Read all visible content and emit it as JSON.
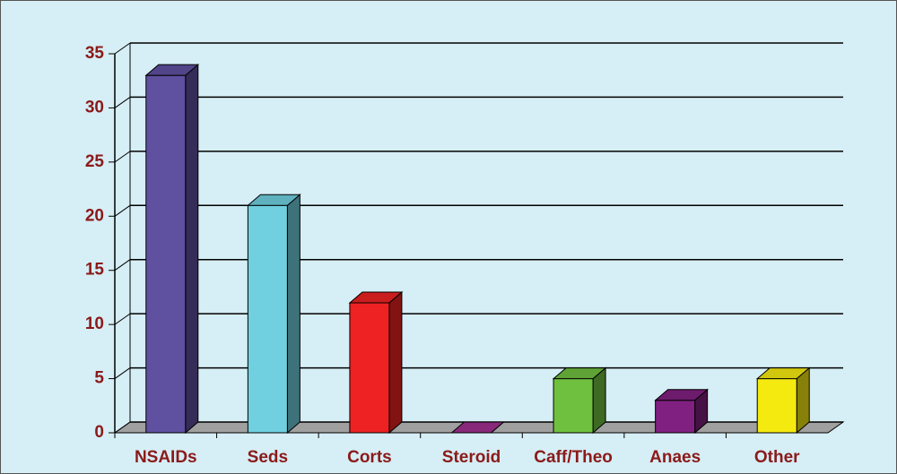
{
  "chart_data": {
    "type": "bar3d",
    "categories": [
      "NSAIDs",
      "Seds",
      "Corts",
      "Steroid",
      "Caff/Theo",
      "Anaes",
      "Other"
    ],
    "values": [
      33,
      21,
      12,
      0,
      5,
      3,
      5
    ],
    "colors": [
      "#6050a0",
      "#70d0e0",
      "#ee2222",
      "#a03090",
      "#70c040",
      "#802080",
      "#f5ea10"
    ],
    "ylim": [
      0,
      35
    ],
    "yticks": [
      0,
      5,
      10,
      15,
      20,
      25,
      30,
      35
    ],
    "grid": true
  }
}
